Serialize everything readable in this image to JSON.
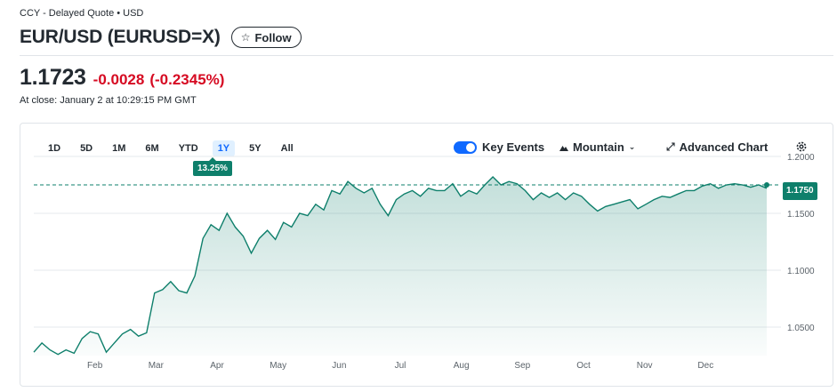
{
  "header": {
    "meta": "CCY - Delayed Quote • USD",
    "title": "EUR/USD (EURUSD=X)",
    "follow_label": "Follow"
  },
  "quote": {
    "price": "1.1723",
    "change": "-0.0028",
    "change_pct": "(-0.2345%)",
    "close_info": "At close: January 2 at 10:29:15 PM GMT"
  },
  "toolbar": {
    "ranges": [
      "1D",
      "5D",
      "1M",
      "6M",
      "YTD",
      "1Y",
      "5Y",
      "All"
    ],
    "active_range": "1Y",
    "range_badge": "13.25%",
    "key_events_label": "Key Events",
    "key_events_on": true,
    "chart_type_label": "Mountain",
    "advanced_label": "Advanced Chart"
  },
  "colors": {
    "up": "#0e7f6b",
    "down": "#d60a22",
    "accent": "#0f69ff"
  },
  "chart_data": {
    "type": "area",
    "x_tick_labels": [
      "Feb",
      "Mar",
      "Apr",
      "May",
      "Jun",
      "Jul",
      "Aug",
      "Sep",
      "Oct",
      "Nov",
      "Dec"
    ],
    "y_tick_labels": [
      "1.2000",
      "1.1500",
      "1.1000",
      "1.0500"
    ],
    "ylim": [
      1.025,
      1.2
    ],
    "reference_line": 1.175,
    "last_value_label": "1.1750",
    "grid": true,
    "x": [
      0,
      4,
      8,
      12,
      16,
      20,
      24,
      28,
      32,
      36,
      40,
      44,
      48,
      52,
      56,
      60,
      64,
      68,
      72,
      76,
      80,
      84,
      88,
      92,
      96,
      100,
      104,
      108,
      112,
      116,
      120,
      124,
      128,
      132,
      136,
      140,
      144,
      148,
      152,
      156,
      160,
      164,
      168,
      172,
      176,
      180,
      184,
      188,
      192,
      196,
      200,
      204,
      208,
      212,
      216,
      220,
      224,
      228,
      232,
      236,
      240,
      244,
      248,
      252,
      256,
      260,
      264,
      268,
      272,
      276,
      280,
      284,
      288,
      292,
      296,
      300,
      304,
      308,
      312,
      316,
      320,
      324,
      328,
      332,
      336,
      340,
      344,
      348,
      352,
      356,
      360,
      364
    ],
    "values": [
      1.028,
      1.036,
      1.03,
      1.026,
      1.03,
      1.027,
      1.04,
      1.046,
      1.044,
      1.028,
      1.036,
      1.044,
      1.048,
      1.042,
      1.045,
      1.08,
      1.083,
      1.09,
      1.082,
      1.08,
      1.095,
      1.128,
      1.14,
      1.135,
      1.15,
      1.138,
      1.13,
      1.115,
      1.128,
      1.135,
      1.127,
      1.142,
      1.138,
      1.15,
      1.148,
      1.158,
      1.153,
      1.17,
      1.167,
      1.178,
      1.172,
      1.168,
      1.172,
      1.158,
      1.148,
      1.162,
      1.167,
      1.17,
      1.165,
      1.172,
      1.17,
      1.17,
      1.176,
      1.165,
      1.17,
      1.167,
      1.175,
      1.182,
      1.175,
      1.178,
      1.176,
      1.17,
      1.162,
      1.168,
      1.164,
      1.168,
      1.162,
      1.168,
      1.165,
      1.158,
      1.152,
      1.156,
      1.158,
      1.16,
      1.162,
      1.154,
      1.158,
      1.162,
      1.165,
      1.164,
      1.167,
      1.17,
      1.17,
      1.174,
      1.176,
      1.172,
      1.175,
      1.176,
      1.175,
      1.173,
      1.175,
      1.172
    ]
  }
}
